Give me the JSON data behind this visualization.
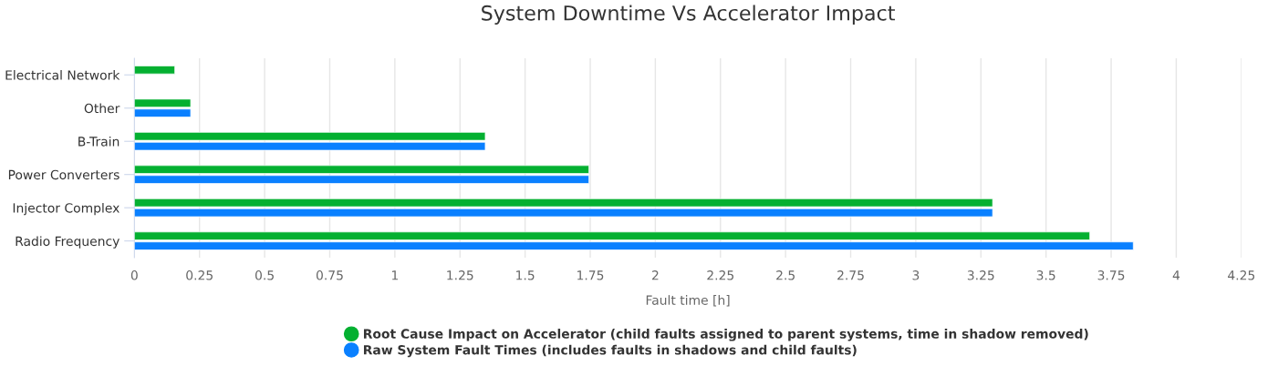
{
  "chart_data": {
    "type": "bar",
    "orientation": "horizontal",
    "title": "System Downtime Vs Accelerator Impact",
    "xlabel": "Fault time [h]",
    "categories": [
      "Electrical Network",
      "Other",
      "B-Train",
      "Power Converters",
      "Injector Complex",
      "Radio Frequency"
    ],
    "series": [
      {
        "name": "Root Cause Impact on Accelerator (child faults assigned to parent systems, time in shadow removed)",
        "color": "#04b031",
        "values": [
          0.155,
          0.216,
          1.347,
          1.745,
          3.295,
          3.668
        ]
      },
      {
        "name": "Raw System Fault Times (includes faults in shadows and child faults)",
        "color": "#0a80ff",
        "values": [
          null,
          0.216,
          1.347,
          1.745,
          3.295,
          3.835
        ]
      }
    ],
    "xlim": [
      0,
      4.25
    ],
    "xticks": [
      0,
      0.25,
      0.5,
      0.75,
      1,
      1.25,
      1.5,
      1.75,
      2,
      2.25,
      2.5,
      2.75,
      3,
      3.25,
      3.5,
      3.75,
      4,
      4.25
    ],
    "grid": "x",
    "legend": "bottom"
  }
}
